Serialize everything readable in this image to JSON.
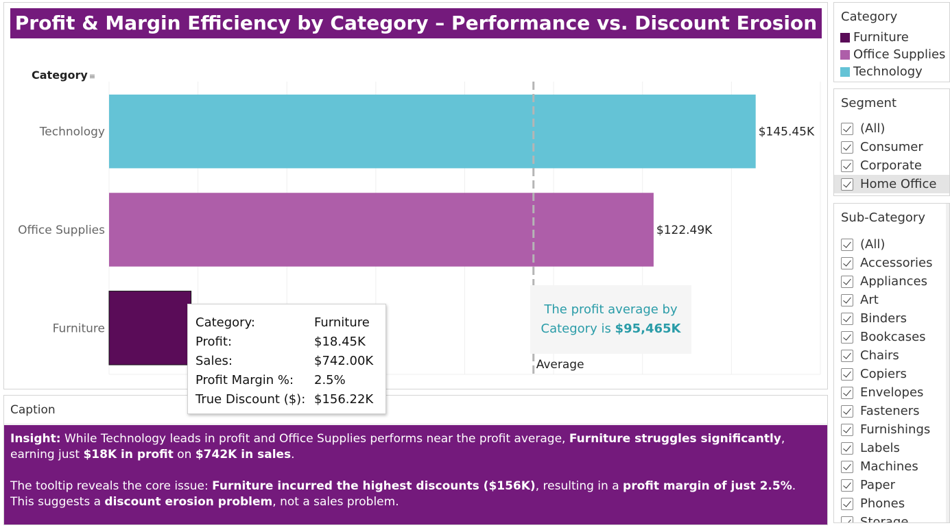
{
  "title": "Profit & Margin Efficiency by Category – Performance vs. Discount Erosion",
  "chart_data": {
    "type": "bar",
    "orientation": "horizontal",
    "axis_header": "Category",
    "categories": [
      "Technology",
      "Office Supplies",
      "Furniture"
    ],
    "values": [
      145.45,
      122.49,
      18.45
    ],
    "value_labels": [
      "$145.45K",
      "$122.49K",
      ""
    ],
    "colors": [
      "#64c3d6",
      "#ae5ea9",
      "#5a0c58"
    ],
    "xlim": [
      0,
      160
    ],
    "average": 95.465,
    "average_label": "Average",
    "grid": true,
    "legend": "right-panel"
  },
  "tooltip": {
    "rows": [
      {
        "key": "Category:",
        "value": "Furniture"
      },
      {
        "key": "Profit:",
        "value": "$18.45K"
      },
      {
        "key": "Sales:",
        "value": "$742.00K"
      },
      {
        "key": "Profit Margin %:",
        "value": "2.5%"
      },
      {
        "key": "True Discount ($):",
        "value": "$156.22K"
      }
    ]
  },
  "avg_note": {
    "line1": "The profit average by",
    "line2_prefix": "Category is ",
    "line2_value": "$95,465K"
  },
  "caption": {
    "header": "Caption",
    "p1": [
      {
        "t": "Insight:",
        "b": true
      },
      {
        "t": " While Technology leads in profit and Office Supplies performs near the profit average, ",
        "b": false
      },
      {
        "t": "Furniture struggles significantly",
        "b": true
      },
      {
        "t": ", earning just ",
        "b": false
      },
      {
        "t": "$18K in profit",
        "b": true
      },
      {
        "t": " on ",
        "b": false
      },
      {
        "t": "$742K in sales",
        "b": true
      },
      {
        "t": ".",
        "b": false
      }
    ],
    "p2": [
      {
        "t": "The tooltip reveals the core issue: ",
        "b": false
      },
      {
        "t": "Furniture incurred the highest discounts ($156K)",
        "b": true
      },
      {
        "t": ", resulting in a ",
        "b": false
      },
      {
        "t": "profit margin of just 2.5%",
        "b": true
      },
      {
        "t": ".",
        "b": false
      }
    ],
    "p3": [
      {
        "t": "This suggests a ",
        "b": false
      },
      {
        "t": "discount erosion problem",
        "b": true
      },
      {
        "t": ", not a sales problem.",
        "b": false
      }
    ]
  },
  "legend": {
    "title": "Category",
    "items": [
      {
        "label": "Furniture",
        "color": "#5a0c58"
      },
      {
        "label": "Office Supplies",
        "color": "#ae5ea9"
      },
      {
        "label": "Technology",
        "color": "#64c3d6"
      }
    ]
  },
  "segment_filter": {
    "title": "Segment",
    "items": [
      "(All)",
      "Consumer",
      "Corporate",
      "Home Office"
    ]
  },
  "subcategory_filter": {
    "title": "Sub-Category",
    "items": [
      "(All)",
      "Accessories",
      "Appliances",
      "Art",
      "Binders",
      "Bookcases",
      "Chairs",
      "Copiers",
      "Envelopes",
      "Fasteners",
      "Furnishings",
      "Labels",
      "Machines",
      "Paper",
      "Phones",
      "Storage"
    ]
  }
}
